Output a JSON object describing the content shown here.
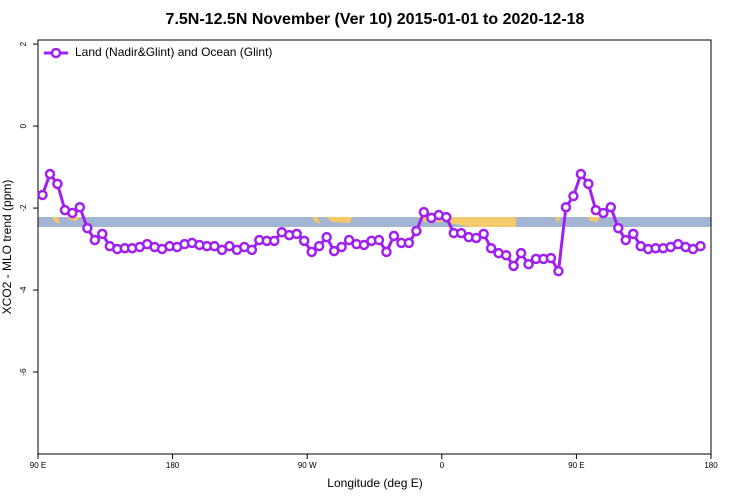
{
  "chart_data": {
    "type": "line",
    "title": "7.5N-12.5N November (Ver 10)   2015-01-01 to 2020-12-18",
    "xlabel": "Longitude (deg E)",
    "ylabel": "XCO2 - MLO trend (ppm)",
    "xlim": [
      90,
      540
    ],
    "xticks": [
      {
        "value": 90,
        "label": "90 E"
      },
      {
        "value": 180,
        "label": "180"
      },
      {
        "value": 270,
        "label": "90 W"
      },
      {
        "value": 360,
        "label": "0"
      },
      {
        "value": 450,
        "label": "90 E"
      },
      {
        "value": 540,
        "label": "180"
      }
    ],
    "ylim": [
      -8,
      2.1
    ],
    "yticks": [
      2,
      0,
      -2,
      -4,
      -6
    ],
    "legend": "top-left",
    "x": [
      93,
      98,
      103,
      108,
      113,
      118,
      123,
      128,
      133,
      138,
      143,
      148,
      153,
      158,
      163,
      168,
      173,
      178,
      183,
      188,
      193,
      198,
      203,
      208,
      213,
      218,
      223,
      228,
      233,
      238,
      243,
      248,
      253,
      258,
      263,
      268,
      273,
      278,
      283,
      288,
      293,
      298,
      303,
      308,
      313,
      318,
      323,
      328,
      333,
      338,
      343,
      348,
      353,
      358,
      363,
      368,
      373,
      378,
      383,
      388,
      393,
      398,
      403,
      408,
      413,
      418,
      423,
      428,
      433,
      438,
      443,
      448,
      453,
      458,
      463,
      468,
      473,
      478,
      483,
      488,
      493,
      498,
      503,
      508,
      513,
      518,
      523,
      528,
      533
    ],
    "series": [
      {
        "name": "Land (Nadir&Glint) and Ocean (Glint)",
        "color": "#a020f0",
        "values": [
          -1.68,
          -1.17,
          -1.41,
          -2.05,
          -2.12,
          -1.98,
          -2.49,
          -2.78,
          -2.63,
          -2.93,
          -3.0,
          -2.98,
          -2.98,
          -2.95,
          -2.88,
          -2.95,
          -3.0,
          -2.93,
          -2.95,
          -2.88,
          -2.85,
          -2.9,
          -2.93,
          -2.93,
          -3.02,
          -2.93,
          -3.02,
          -2.95,
          -3.02,
          -2.78,
          -2.8,
          -2.8,
          -2.59,
          -2.66,
          -2.63,
          -2.8,
          -3.07,
          -2.93,
          -2.71,
          -3.05,
          -2.95,
          -2.78,
          -2.88,
          -2.9,
          -2.8,
          -2.78,
          -3.07,
          -2.68,
          -2.85,
          -2.85,
          -2.56,
          -2.1,
          -2.24,
          -2.17,
          -2.22,
          -2.61,
          -2.61,
          -2.71,
          -2.73,
          -2.63,
          -2.98,
          -3.1,
          -3.15,
          -3.41,
          -3.1,
          -3.37,
          -3.24,
          -3.24,
          -3.22,
          -3.54,
          -1.98,
          -1.71,
          -1.17,
          -1.41,
          -2.05,
          -2.12,
          -1.98,
          -2.49,
          -2.78,
          -2.63,
          -2.93,
          -3.0,
          -2.98,
          -2.98,
          -2.95,
          -2.88,
          -2.95,
          -3.0,
          -2.93
        ]
      }
    ]
  }
}
